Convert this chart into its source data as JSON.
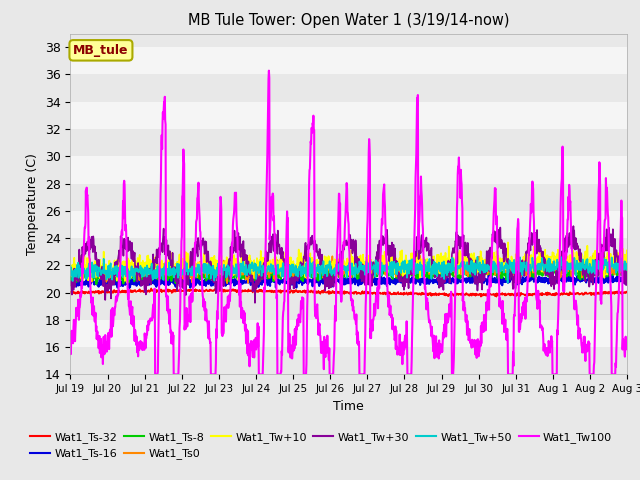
{
  "title": "MB Tule Tower: Open Water 1 (3/19/14-now)",
  "xlabel": "Time",
  "ylabel": "Temperature (C)",
  "ylim": [
    14,
    39
  ],
  "yticks": [
    14,
    16,
    18,
    20,
    22,
    24,
    26,
    28,
    30,
    32,
    34,
    36,
    38
  ],
  "plot_bg_color": "#e8e8e8",
  "band_colors": [
    "#e8e8e8",
    "#f5f5f5"
  ],
  "legend_labels": [
    "Wat1_Ts-32",
    "Wat1_Ts-16",
    "Wat1_Ts-8",
    "Wat1_Ts0",
    "Wat1_Tw+10",
    "Wat1_Tw+30",
    "Wat1_Tw+50",
    "Wat1_Tw100"
  ],
  "legend_colors": [
    "#ff0000",
    "#0000dd",
    "#00cc00",
    "#ff8800",
    "#ffff00",
    "#880099",
    "#00cccc",
    "#ff00ff"
  ],
  "xticklabels": [
    "Jul 19",
    "Jul 20",
    "Jul 21",
    "Jul 22",
    "Jul 23",
    "Jul 24",
    "Jul 25",
    "Jul 26",
    "Jul 27",
    "Jul 28",
    "Jul 29",
    "Jul 30",
    "Jul 31",
    "Aug 1",
    "Aug 2",
    "Aug 3"
  ],
  "n_points": 1440,
  "annotation_box": {
    "text": "MB_tule",
    "text_color": "#8b0000",
    "bg_color": "#ffff99",
    "border_color": "#aaaa00"
  }
}
